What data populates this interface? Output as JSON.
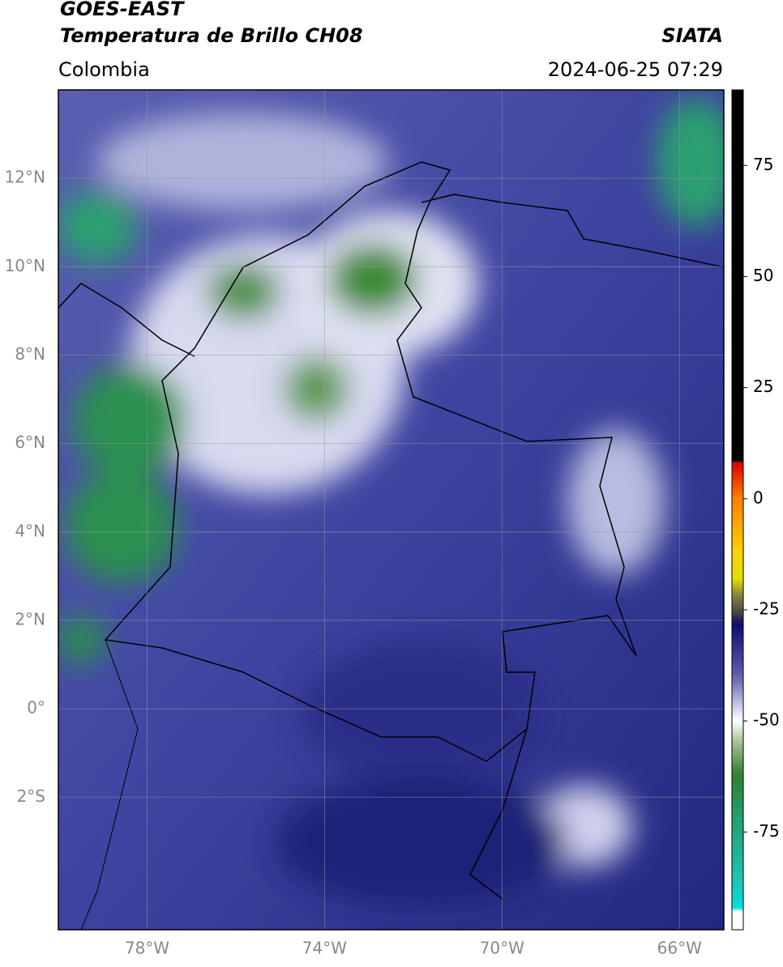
{
  "header": {
    "title": "GOES-EAST",
    "subtitle": "Temperatura de Brillo CH08",
    "source": "SIATA",
    "region": "Colombia",
    "timestamp": "2024-06-25 07:29"
  },
  "map": {
    "xlim": [
      -80,
      -65
    ],
    "ylim": [
      -5,
      14
    ],
    "grid": true,
    "xticks": [
      {
        "value": -78,
        "label": "78°W"
      },
      {
        "value": -74,
        "label": "74°W"
      },
      {
        "value": -70,
        "label": "70°W"
      },
      {
        "value": -66,
        "label": "66°W"
      }
    ],
    "yticks": [
      {
        "value": 12,
        "label": "12°N"
      },
      {
        "value": 10,
        "label": "10°N"
      },
      {
        "value": 8,
        "label": "8°N"
      },
      {
        "value": 6,
        "label": "6°N"
      },
      {
        "value": 4,
        "label": "4°N"
      },
      {
        "value": 2,
        "label": "2°N"
      },
      {
        "value": 0,
        "label": "0°"
      },
      {
        "value": -2,
        "label": "2°S"
      }
    ]
  },
  "colorbar": {
    "lim": [
      -97,
      92
    ],
    "ticks": [
      75,
      50,
      25,
      0,
      -25,
      -50,
      -75
    ],
    "stops": [
      {
        "value": 92,
        "color": "#000000"
      },
      {
        "value": 8.5,
        "color": "#000000"
      },
      {
        "value": 8,
        "color": "#e00000"
      },
      {
        "value": 0,
        "color": "#ff8000"
      },
      {
        "value": -12,
        "color": "#ffd000"
      },
      {
        "value": -18,
        "color": "#e0e000"
      },
      {
        "value": -22,
        "color": "#808040"
      },
      {
        "value": -26,
        "color": "#404040"
      },
      {
        "value": -28,
        "color": "#0a0a70"
      },
      {
        "value": -40,
        "color": "#6060b0"
      },
      {
        "value": -48,
        "color": "#e0e0f0"
      },
      {
        "value": -50,
        "color": "#ffffff"
      },
      {
        "value": -55,
        "color": "#a0c090"
      },
      {
        "value": -62,
        "color": "#308030"
      },
      {
        "value": -72,
        "color": "#20a070"
      },
      {
        "value": -85,
        "color": "#20c0b0"
      },
      {
        "value": -92,
        "color": "#00e0e0"
      },
      {
        "value": -93,
        "color": "#ffffff"
      },
      {
        "value": -97,
        "color": "#ffffff"
      }
    ]
  }
}
